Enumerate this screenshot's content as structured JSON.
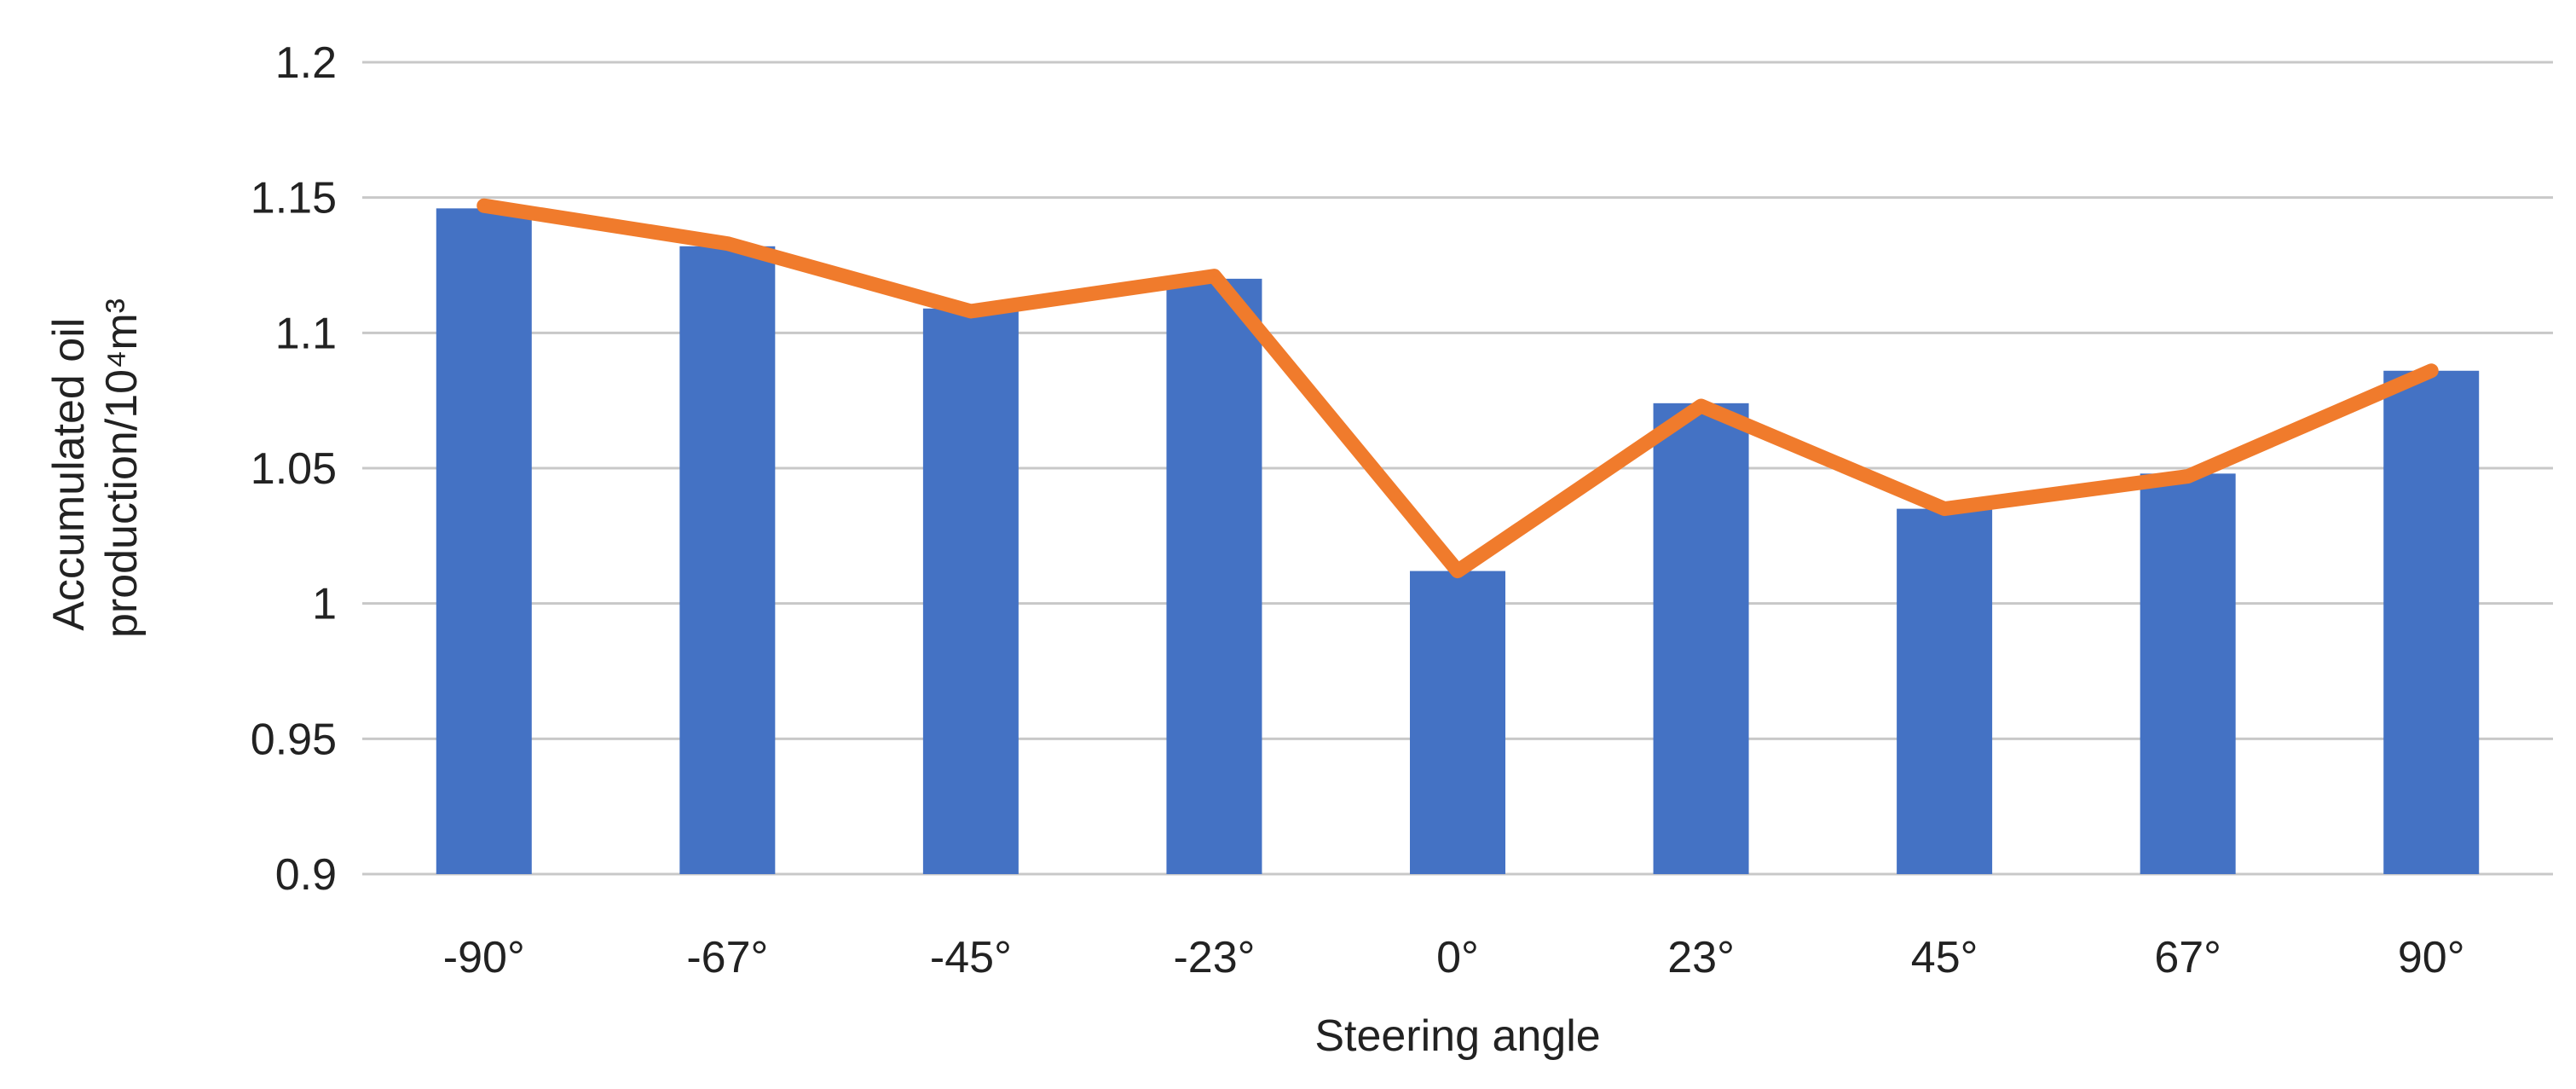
{
  "colors": {
    "bar": "#4472C4",
    "line": "#F07B2C",
    "grid": "#c8c8c8",
    "text": "#222222"
  },
  "chart_data": {
    "type": "bar",
    "title": "",
    "xlabel": "Steering angle",
    "ylabel_lines": [
      "Accumulated oil",
      "production/10⁴m³"
    ],
    "ylim": [
      0.9,
      1.2
    ],
    "yticks": [
      0.9,
      0.95,
      1,
      1.05,
      1.1,
      1.15,
      1.2
    ],
    "ytick_labels": [
      "0.9",
      "0.95",
      "1",
      "1.05",
      "1.1",
      "1.15",
      "1.2"
    ],
    "categories": [
      "-90°",
      "-67°",
      "-45°",
      "-23°",
      "0°",
      "23°",
      "45°",
      "67°",
      "90°"
    ],
    "grid": true,
    "series": [
      {
        "name": "bars",
        "kind": "bar",
        "values": [
          1.146,
          1.132,
          1.109,
          1.12,
          1.012,
          1.074,
          1.035,
          1.048,
          1.086
        ]
      },
      {
        "name": "line",
        "kind": "line",
        "values": [
          1.147,
          1.133,
          1.108,
          1.121,
          1.012,
          1.073,
          1.035,
          1.047,
          1.086
        ]
      }
    ]
  }
}
